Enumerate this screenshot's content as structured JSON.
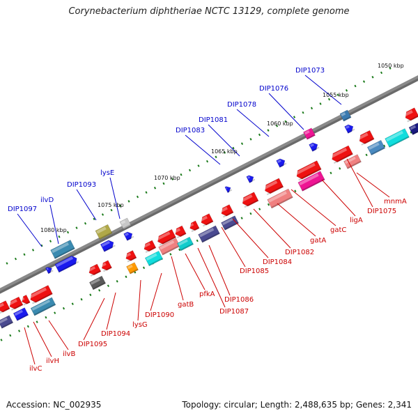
{
  "title": "Corynebacterium diphtheriae NCTC 13129, complete genome",
  "footer": {
    "accession": "Accession: NC_002935",
    "summary": "Topology: circular; Length: 2,488,635 bp; Genes: 2,341"
  },
  "colors": {
    "forward_label": "#0000cc",
    "reverse_label": "#cc0000",
    "backbone": "#8a8a8a",
    "gc_dots": "#1a7a1a"
  },
  "ticks": [
    "1050 kbp",
    "1055 kbp",
    "1060 kbp",
    "1065 kbp",
    "1070 kbp",
    "1075 kbp",
    "1080 kbp"
  ],
  "labels": {
    "forward": [
      "DIP1073",
      "DIP1076",
      "DIP1078",
      "DIP1081",
      "DIP1083",
      "lysE",
      "DIP1093",
      "ilvD",
      "DIP1097"
    ],
    "reverse": [
      "mnmA",
      "DIP1075",
      "ligA",
      "gatC",
      "gatA",
      "DIP1082",
      "DIP1084",
      "DIP1085",
      "DIP1086",
      "DIP1087",
      "pfkA",
      "gatB",
      "DIP1090",
      "lysG",
      "DIP1094",
      "DIP1095",
      "ilvB",
      "ilvH",
      "ilvC"
    ]
  }
}
